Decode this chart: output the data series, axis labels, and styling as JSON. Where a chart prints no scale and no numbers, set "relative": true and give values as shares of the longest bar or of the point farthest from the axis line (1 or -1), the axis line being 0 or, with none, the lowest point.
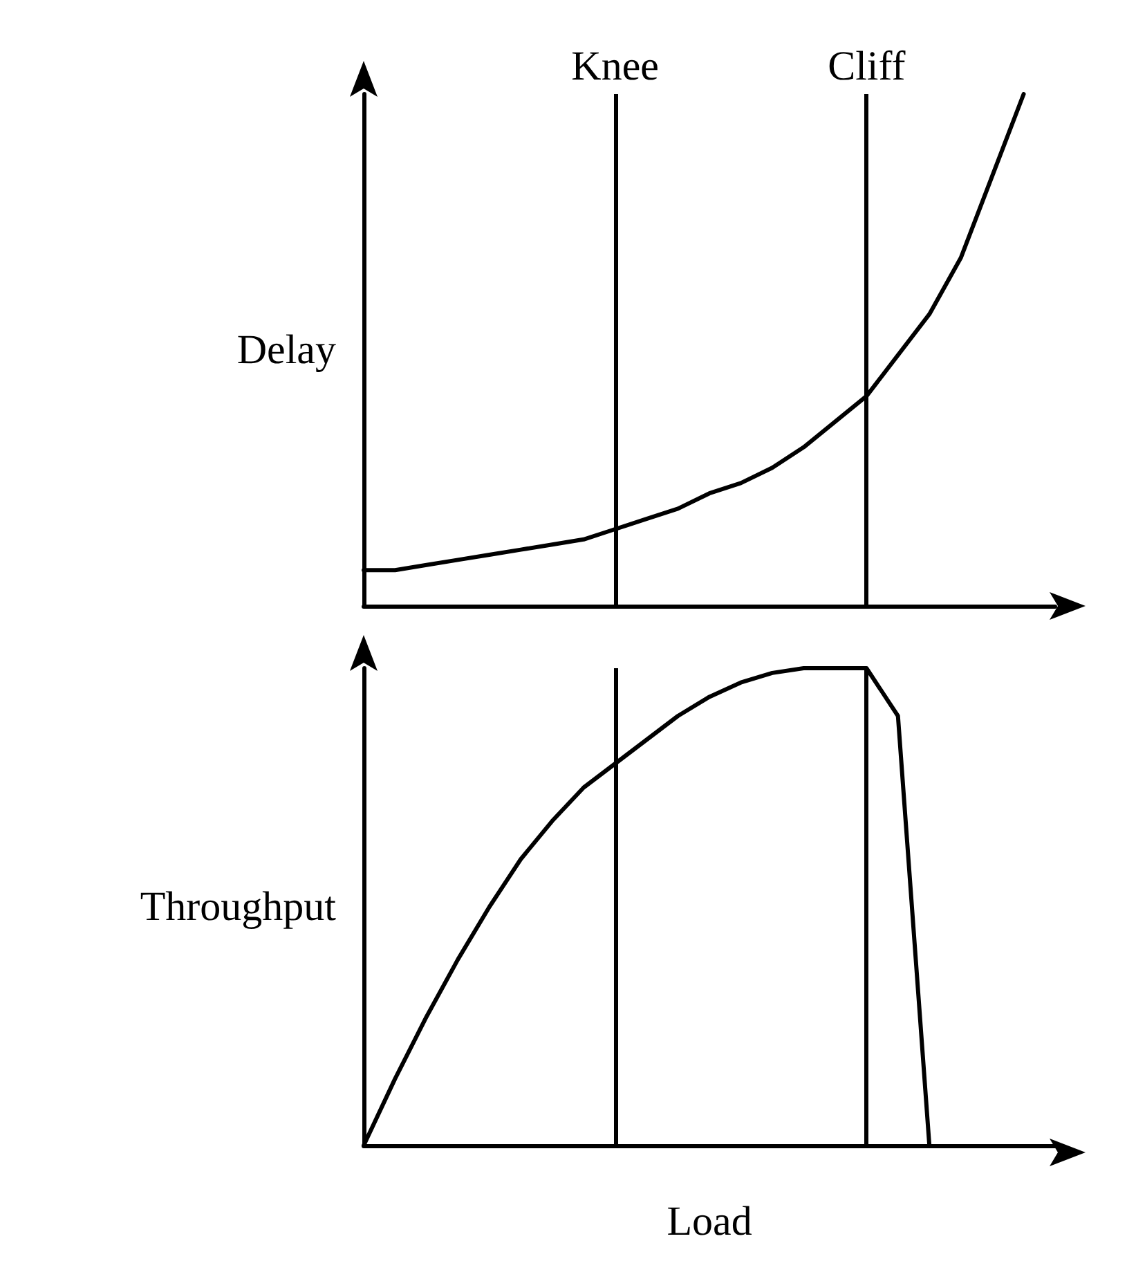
{
  "chart_data": [
    {
      "type": "line",
      "ylabel": "Delay",
      "relative": true,
      "grid": false,
      "marker": "none",
      "line_style": "solid",
      "categories": [
        null,
        null,
        null,
        null,
        null,
        null,
        null,
        null,
        null,
        null,
        null,
        null,
        null,
        null,
        null,
        null,
        null,
        null,
        null,
        null,
        null,
        null,
        null
      ],
      "series": [
        {
          "color": "#000000",
          "values": [
            0.07,
            0.07,
            0.08,
            0.09,
            0.1,
            0.11,
            0.12,
            0.13,
            0.15,
            0.17,
            0.19,
            0.22,
            0.24,
            0.27,
            0.31,
            0.36,
            0.41,
            0.49,
            0.57,
            0.68,
            0.84,
            1,
            null
          ]
        }
      ],
      "annotations": [
        "Knee",
        "Cliff"
      ]
    },
    {
      "type": "line",
      "ylabel": "Throughput",
      "xlabel": "Load",
      "relative": true,
      "grid": false,
      "marker": "none",
      "line_style": "solid",
      "categories": [
        null,
        null,
        null,
        null,
        null,
        null,
        null,
        null,
        null,
        null,
        null,
        null,
        null,
        null,
        null,
        null,
        null,
        null,
        null,
        null,
        null,
        null,
        null
      ],
      "series": [
        {
          "color": "#000000",
          "values": [
            0,
            0.14,
            0.27,
            0.39,
            0.5,
            0.6,
            0.68,
            0.75,
            0.8,
            0.85,
            0.9,
            0.94,
            0.97,
            0.99,
            1,
            1,
            1,
            0.9,
            0,
            null,
            null,
            null,
            null
          ]
        }
      ]
    }
  ]
}
